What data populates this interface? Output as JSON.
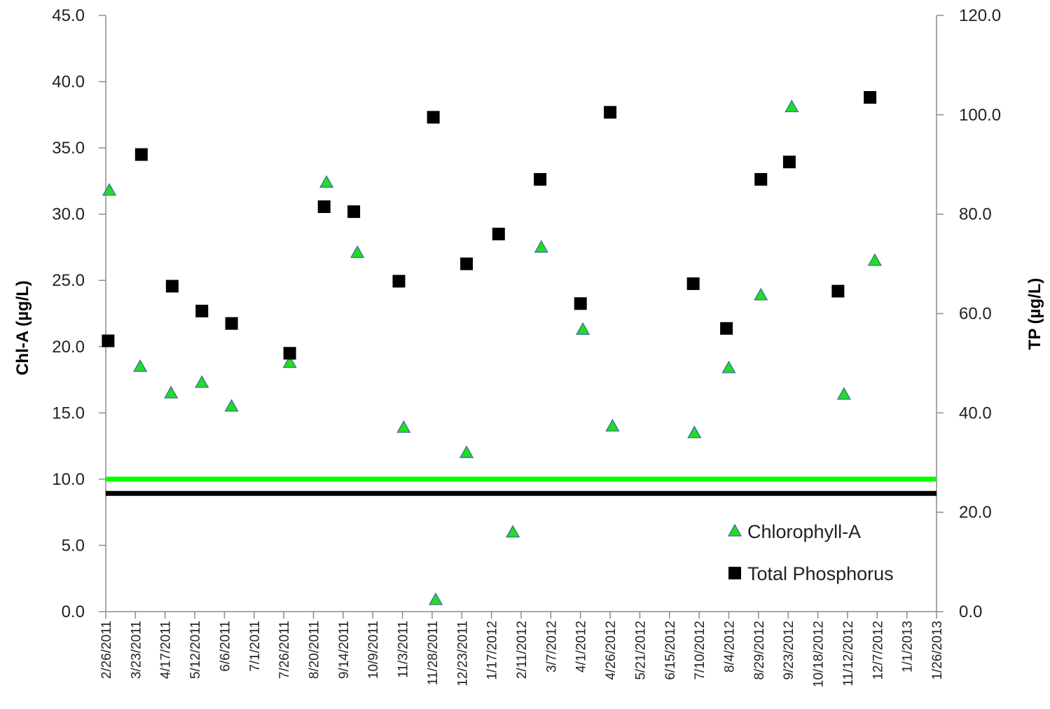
{
  "chart_data": {
    "type": "scatter",
    "title": "",
    "ylabel_left": "Chl-A (µg/L)",
    "ylabel_right": "TP (µg/L)",
    "x_ticks": [
      "2/26/2011",
      "3/23/2011",
      "4/17/2011",
      "5/12/2011",
      "6/6/2011",
      "7/1/2011",
      "7/26/2011",
      "8/20/2011",
      "9/14/2011",
      "10/9/2011",
      "11/3/2011",
      "11/28/2011",
      "12/23/2011",
      "1/17/2012",
      "2/11/2012",
      "3/7/2012",
      "4/1/2012",
      "4/26/2012",
      "5/21/2012",
      "6/15/2012",
      "7/10/2012",
      "8/4/2012",
      "8/29/2012",
      "9/23/2012",
      "10/18/2012",
      "11/12/2012",
      "12/7/2012",
      "1/1/2013",
      "1/26/2013"
    ],
    "xlim": [
      "2/26/2011",
      "1/26/2013"
    ],
    "ylim_left": [
      0,
      45
    ],
    "ylim_right": [
      0,
      120
    ],
    "y_ticks_left": [
      "0.0",
      "5.0",
      "10.0",
      "15.0",
      "20.0",
      "25.0",
      "30.0",
      "35.0",
      "40.0",
      "45.0"
    ],
    "y_ticks_right": [
      "0.0",
      "20.0",
      "40.0",
      "60.0",
      "80.0",
      "100.0",
      "120.0"
    ],
    "grid": false,
    "legend": "bottom-right",
    "series": [
      {
        "name": "Chlorophyll-A",
        "axis": "left",
        "marker": "triangle",
        "color": "#22dd22",
        "edge": "#3a6ea5",
        "points": [
          {
            "x": "3/1/2011",
            "y": 31.8
          },
          {
            "x": "3/27/2011",
            "y": 18.5
          },
          {
            "x": "4/22/2011",
            "y": 16.5
          },
          {
            "x": "5/18/2011",
            "y": 17.3
          },
          {
            "x": "6/12/2011",
            "y": 15.5
          },
          {
            "x": "7/31/2011",
            "y": 18.8
          },
          {
            "x": "8/31/2011",
            "y": 32.4
          },
          {
            "x": "9/26/2011",
            "y": 27.1
          },
          {
            "x": "11/4/2011",
            "y": 13.9
          },
          {
            "x": "12/1/2011",
            "y": 0.9
          },
          {
            "x": "12/27/2011",
            "y": 12.0
          },
          {
            "x": "2/4/2012",
            "y": 6.0
          },
          {
            "x": "2/28/2012",
            "y": 27.5
          },
          {
            "x": "4/3/2012",
            "y": 21.3
          },
          {
            "x": "4/28/2012",
            "y": 14.0
          },
          {
            "x": "7/6/2012",
            "y": 13.5
          },
          {
            "x": "8/4/2012",
            "y": 18.4
          },
          {
            "x": "8/31/2012",
            "y": 23.9
          },
          {
            "x": "9/26/2012",
            "y": 38.1
          },
          {
            "x": "11/9/2012",
            "y": 16.4
          },
          {
            "x": "12/5/2012",
            "y": 26.5
          }
        ]
      },
      {
        "name": "Total Phosphorus",
        "axis": "right",
        "marker": "square",
        "color": "#000000",
        "points": [
          {
            "x": "2/28/2011",
            "y": 54.5
          },
          {
            "x": "3/28/2011",
            "y": 92.0
          },
          {
            "x": "4/23/2011",
            "y": 65.5
          },
          {
            "x": "5/18/2011",
            "y": 60.5
          },
          {
            "x": "6/12/2011",
            "y": 58.0
          },
          {
            "x": "7/31/2011",
            "y": 52.0
          },
          {
            "x": "8/29/2011",
            "y": 81.5
          },
          {
            "x": "9/23/2011",
            "y": 80.5
          },
          {
            "x": "10/31/2011",
            "y": 66.5
          },
          {
            "x": "11/29/2011",
            "y": 99.5
          },
          {
            "x": "12/27/2011",
            "y": 70.0
          },
          {
            "x": "1/23/2012",
            "y": 76.0
          },
          {
            "x": "2/27/2012",
            "y": 87.0
          },
          {
            "x": "4/1/2012",
            "y": 62.0
          },
          {
            "x": "4/26/2012",
            "y": 100.5
          },
          {
            "x": "7/5/2012",
            "y": 66.0
          },
          {
            "x": "8/2/2012",
            "y": 57.0
          },
          {
            "x": "8/31/2012",
            "y": 87.0
          },
          {
            "x": "9/24/2012",
            "y": 90.5
          },
          {
            "x": "11/4/2012",
            "y": 64.5
          },
          {
            "x": "12/1/2012",
            "y": 103.5
          }
        ]
      }
    ],
    "reference_lines": [
      {
        "axis": "left",
        "y": 10.0,
        "color": "#00ff00"
      },
      {
        "axis": "right",
        "y": 23.8,
        "color": "#000000"
      }
    ]
  }
}
